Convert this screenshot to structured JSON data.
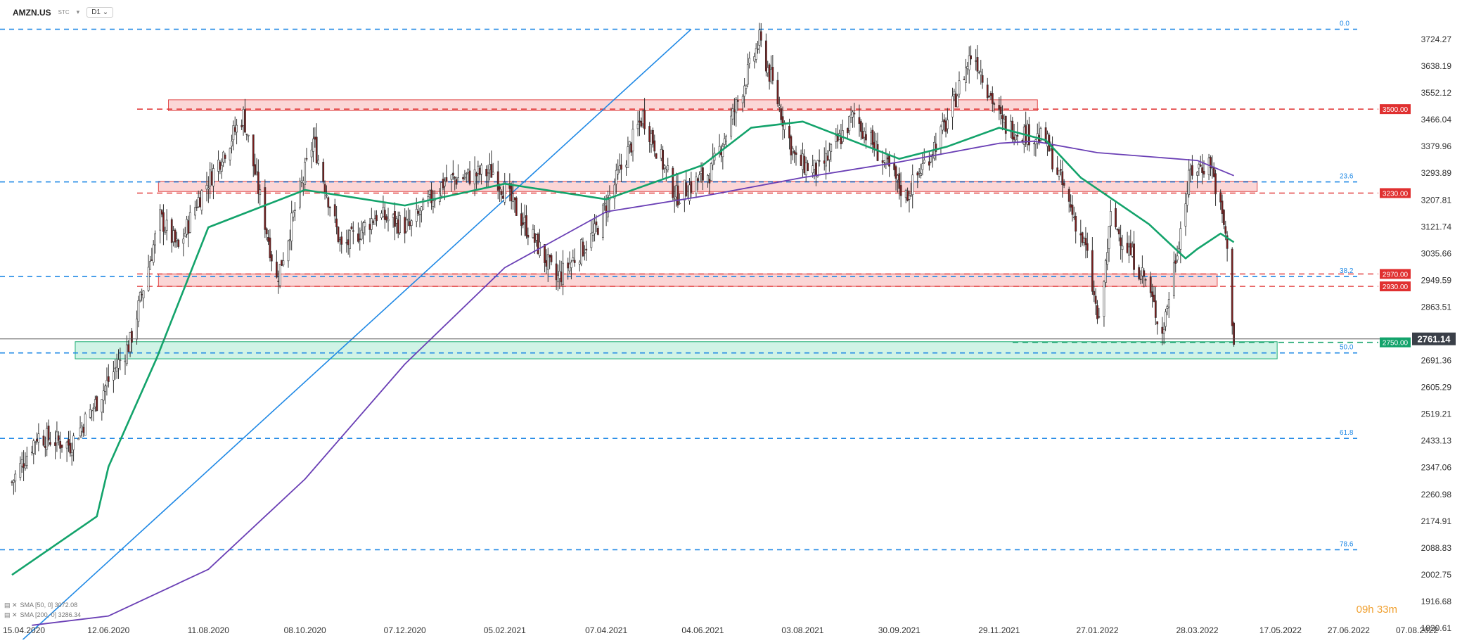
{
  "header": {
    "symbol": "AMZN.US",
    "subtitle": "STC",
    "timeframe": "D1"
  },
  "timer": "09h 33m",
  "legend": [
    {
      "text": "SMA [50, 0] 3072.08",
      "color": "#13a36b"
    },
    {
      "text": "SMA [200, 0] 3286.34",
      "color": "#6a3fb5"
    }
  ],
  "chart_data": {
    "type": "candlestick",
    "y_ticks": [
      3724.27,
      3638.19,
      3552.12,
      3466.04,
      3379.96,
      3293.89,
      3207.81,
      3121.74,
      3035.66,
      2949.59,
      2863.51,
      2777.44,
      2691.36,
      2605.29,
      2519.21,
      2433.13,
      2347.06,
      2260.98,
      2174.91,
      2088.83,
      2002.75,
      1916.68,
      1830.61
    ],
    "x_ticks": [
      "15.04.2020",
      "12.06.2020",
      "11.08.2020",
      "08.10.2020",
      "07.12.2020",
      "05.02.2021",
      "07.04.2021",
      "04.06.2021",
      "03.08.2021",
      "30.09.2021",
      "29.11.2021",
      "27.01.2022",
      "28.03.2022",
      "17.05.2022",
      "27.06.2022",
      "07.08.2022"
    ],
    "last_price": 2761.14,
    "level_labels": [
      {
        "value": 3500.0,
        "label": "3500.00",
        "color": "#e03030"
      },
      {
        "value": 3230.0,
        "label": "3230.00",
        "color": "#e03030"
      },
      {
        "value": 2970.0,
        "label": "2970.00",
        "color": "#e03030"
      },
      {
        "value": 2930.0,
        "label": "2930.00",
        "color": "#e03030"
      },
      {
        "value": 2750.0,
        "label": "2750.00",
        "color": "#13a36b"
      }
    ],
    "fibonacci": [
      {
        "ratio": "0.0",
        "value": 3757
      },
      {
        "ratio": "23.6",
        "value": 3266
      },
      {
        "ratio": "38.2",
        "value": 2962
      },
      {
        "ratio": "50.0",
        "value": 2716
      },
      {
        "ratio": "61.8",
        "value": 2441
      },
      {
        "ratio": "78.6",
        "value": 2083
      }
    ],
    "zones": [
      {
        "kind": "resistance",
        "x_from": "18.07.2020",
        "x_to": "22.12.2021",
        "y_from": 3495,
        "y_to": 3530
      },
      {
        "kind": "resistance",
        "x_from": "12.07.2020",
        "x_to": "03.05.2022",
        "y_from": 3235,
        "y_to": 3268
      },
      {
        "kind": "resistance",
        "x_from": "12.07.2020",
        "x_to": "09.04.2022",
        "y_from": 2930,
        "y_to": 2970
      },
      {
        "kind": "support",
        "x_from": "23.05.2020",
        "x_to": "15.05.2022",
        "y_from": 2697,
        "y_to": 2752
      }
    ],
    "sma_50": [
      [
        "15.04.2020",
        2002
      ],
      [
        "05.06.2020",
        2190
      ],
      [
        "12.06.2020",
        2350
      ],
      [
        "11.07.2020",
        2700
      ],
      [
        "11.08.2020",
        3120
      ],
      [
        "08.10.2020",
        3240
      ],
      [
        "07.12.2020",
        3190
      ],
      [
        "05.02.2021",
        3260
      ],
      [
        "07.04.2021",
        3210
      ],
      [
        "04.06.2021",
        3320
      ],
      [
        "03.07.2021",
        3440
      ],
      [
        "03.08.2021",
        3460
      ],
      [
        "30.09.2021",
        3340
      ],
      [
        "29.10.2021",
        3380
      ],
      [
        "29.11.2021",
        3440
      ],
      [
        "27.12.2021",
        3400
      ],
      [
        "17.01.2022",
        3280
      ],
      [
        "27.02.2022",
        3130
      ],
      [
        "21.03.2022",
        3020
      ],
      [
        "28.03.2022",
        3050
      ],
      [
        "11.04.2022",
        3100
      ],
      [
        "19.04.2022",
        3072
      ]
    ],
    "sma_200": [
      [
        "27.04.2020",
        1840
      ],
      [
        "12.06.2020",
        1870
      ],
      [
        "11.08.2020",
        2020
      ],
      [
        "08.10.2020",
        2310
      ],
      [
        "07.12.2020",
        2680
      ],
      [
        "05.02.2021",
        2990
      ],
      [
        "07.04.2021",
        3170
      ],
      [
        "04.06.2021",
        3220
      ],
      [
        "03.08.2021",
        3280
      ],
      [
        "30.09.2021",
        3330
      ],
      [
        "29.11.2021",
        3390
      ],
      [
        "20.12.2021",
        3397
      ],
      [
        "27.01.2022",
        3360
      ],
      [
        "28.03.2022",
        3335
      ],
      [
        "19.04.2022",
        3286
      ]
    ],
    "trendline": [
      [
        "15.04.2020",
        1830
      ],
      [
        "28.05.2021",
        3757
      ]
    ],
    "xlabel": "",
    "ylabel": ""
  }
}
